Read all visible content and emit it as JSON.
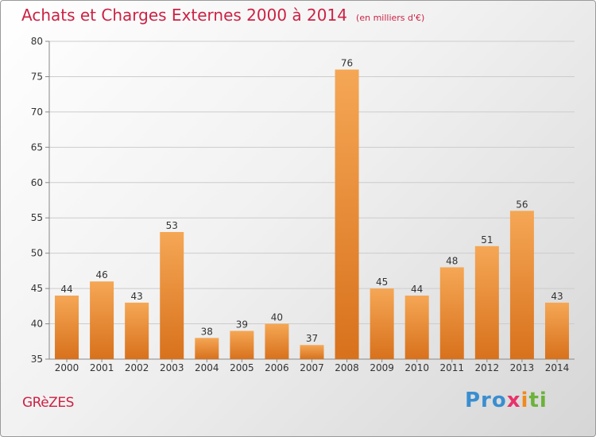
{
  "header": {
    "title": "Achats et Charges Externes 2000 à 2014",
    "unit": "(en milliers d'€)"
  },
  "footer": {
    "town": "GRèZES",
    "logo_text": [
      "Pro",
      "x",
      "i",
      "ti"
    ]
  },
  "colors": {
    "title": "#cc2244",
    "bar_light": "#f5a755",
    "bar_dark": "#d8711c",
    "axis": "#888888",
    "grid": "#cccccc"
  },
  "chart_data": {
    "type": "bar",
    "categories": [
      "2000",
      "2001",
      "2002",
      "2003",
      "2004",
      "2005",
      "2006",
      "2007",
      "2008",
      "2009",
      "2010",
      "2011",
      "2012",
      "2013",
      "2014"
    ],
    "values": [
      44,
      46,
      43,
      53,
      38,
      39,
      40,
      37,
      76,
      45,
      44,
      48,
      51,
      56,
      43
    ],
    "ylim": [
      35,
      80
    ],
    "yticks": [
      35,
      40,
      45,
      50,
      55,
      60,
      65,
      70,
      75,
      80
    ],
    "grid": true,
    "title": "Achats et Charges Externes 2000 à 2014",
    "xlabel": "",
    "ylabel": ""
  }
}
